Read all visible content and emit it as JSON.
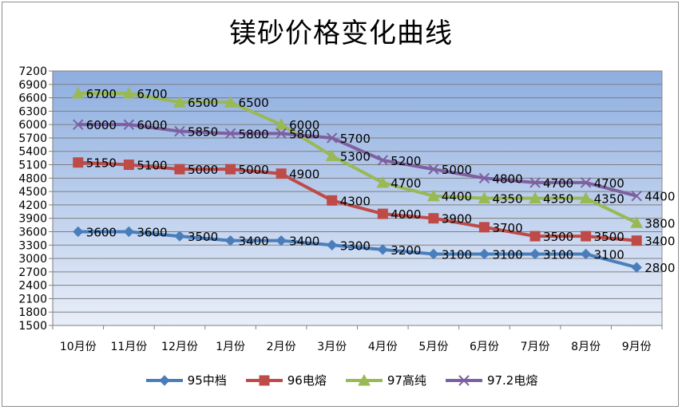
{
  "chart_data": {
    "type": "line",
    "title": "镁砂价格变化曲线",
    "xlabel": "",
    "ylabel": "",
    "categories": [
      "10月份",
      "11月份",
      "12月份",
      "1月份",
      "2月份",
      "3月份",
      "4月份",
      "5月份",
      "6月份",
      "7月份",
      "8月份",
      "9月份"
    ],
    "ylim": [
      1500,
      7200
    ],
    "yticks": [
      1500,
      1800,
      2100,
      2400,
      2700,
      3000,
      3300,
      3600,
      3900,
      4200,
      4500,
      4800,
      5100,
      5400,
      5700,
      6000,
      6300,
      6600,
      6900,
      7200
    ],
    "grid": true,
    "legend_position": "bottom",
    "series": [
      {
        "name": "95中档",
        "color": "#4a7ebb",
        "marker": "diamond",
        "values": [
          3600,
          3600,
          3500,
          3400,
          3400,
          3300,
          3200,
          3100,
          3100,
          3100,
          3100,
          2800
        ]
      },
      {
        "name": "96电熔",
        "color": "#be4b48",
        "marker": "square",
        "values": [
          5150,
          5100,
          5000,
          5000,
          4900,
          4300,
          4000,
          3900,
          3700,
          3500,
          3500,
          3400
        ]
      },
      {
        "name": "97高纯",
        "color": "#98b954",
        "marker": "triangle",
        "values": [
          6700,
          6700,
          6500,
          6500,
          6000,
          5300,
          4700,
          4400,
          4350,
          4350,
          4350,
          3800
        ]
      },
      {
        "name": "97.2电熔",
        "color": "#7d60a0",
        "marker": "x",
        "values": [
          6000,
          6000,
          5850,
          5800,
          5800,
          5700,
          5200,
          5000,
          4800,
          4700,
          4700,
          4400
        ]
      }
    ]
  }
}
